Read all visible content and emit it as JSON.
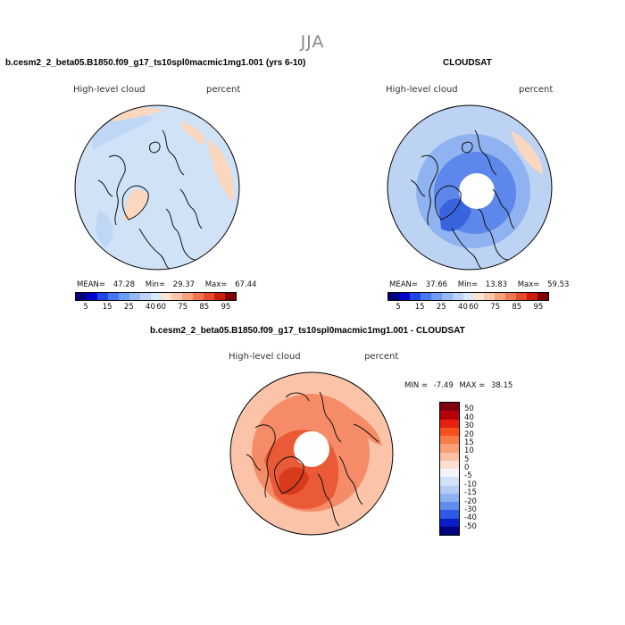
{
  "page": {
    "season": "JJA"
  },
  "panels": {
    "model": {
      "title": "b.cesm2_2_beta05.B1850.f09_g17_ts10spl0macmic1mg1.001 (yrs 6-10)",
      "variable": "High-level cloud",
      "units": "percent",
      "stats": {
        "mean_label": "MEAN=",
        "mean": "47.28",
        "min_label": "Min=",
        "min": "29.37",
        "max_label": "Max=",
        "max": "67.44"
      },
      "colorbar": {
        "colors": [
          "#00007f",
          "#0000cc",
          "#1e46e6",
          "#4678f0",
          "#6e9bf5",
          "#96b9f5",
          "#bed2f5",
          "#dbe8f8",
          "#fde4d2",
          "#fbc8aa",
          "#f7a27c",
          "#f07850",
          "#e54b2a",
          "#c81e0a",
          "#7f0000"
        ],
        "tick_labels": [
          "5",
          "15",
          "25",
          "40",
          "60",
          "75",
          "85",
          "95"
        ]
      }
    },
    "obs": {
      "title": "CLOUDSAT",
      "variable": "High-level cloud",
      "units": "percent",
      "stats": {
        "mean_label": "MEAN=",
        "mean": "37.66",
        "min_label": "Min=",
        "min": "13.83",
        "max_label": "Max=",
        "max": "59.53"
      },
      "colorbar": {
        "colors": [
          "#00007f",
          "#0000cc",
          "#1e46e6",
          "#4678f0",
          "#6e9bf5",
          "#96b9f5",
          "#bed2f5",
          "#dbe8f8",
          "#fde4d2",
          "#fbc8aa",
          "#f7a27c",
          "#f07850",
          "#e54b2a",
          "#c81e0a",
          "#7f0000"
        ],
        "tick_labels": [
          "5",
          "15",
          "25",
          "40",
          "60",
          "75",
          "85",
          "95"
        ]
      }
    },
    "diff": {
      "title": "b.cesm2_2_beta05.B1850.f09_g17_ts10spl0macmic1mg1.001 - CLOUDSAT",
      "variable": "High-level cloud",
      "units": "percent",
      "stats": {
        "min_label": "MIN =",
        "min": "-7.49",
        "max_label": "MAX =",
        "max": "38.15"
      },
      "colorbar": {
        "colors": [
          "#80000f",
          "#b4000a",
          "#e6200e",
          "#f5501e",
          "#f77a48",
          "#fa9e78",
          "#fcc0a4",
          "#fde0d0",
          "#f4f4fa",
          "#d4e2f8",
          "#b4ccf4",
          "#8eb2f0",
          "#5f8eec",
          "#2c5ae6",
          "#0a1ec8",
          "#000080"
        ],
        "tick_labels": [
          "50",
          "40",
          "30",
          "20",
          "15",
          "10",
          "5",
          "0",
          "-5",
          "-10",
          "-15",
          "-20",
          "-30",
          "-40",
          "-50"
        ]
      }
    }
  },
  "colors": {
    "ocean_model": "#cfe2f6",
    "land_model_cool": "#bfd6f4",
    "warm_patch": "#fbd7bf",
    "obs_base": "#bcd3f3",
    "obs_mid": "#8fb2f0",
    "obs_low": "#5d87ea",
    "obs_lowest": "#3a63e0",
    "diff_base": "#fbc3a7",
    "diff_mid": "#f58c67",
    "diff_high": "#ea5a36",
    "diff_peak": "#d93a1c",
    "coast": "#111111"
  }
}
